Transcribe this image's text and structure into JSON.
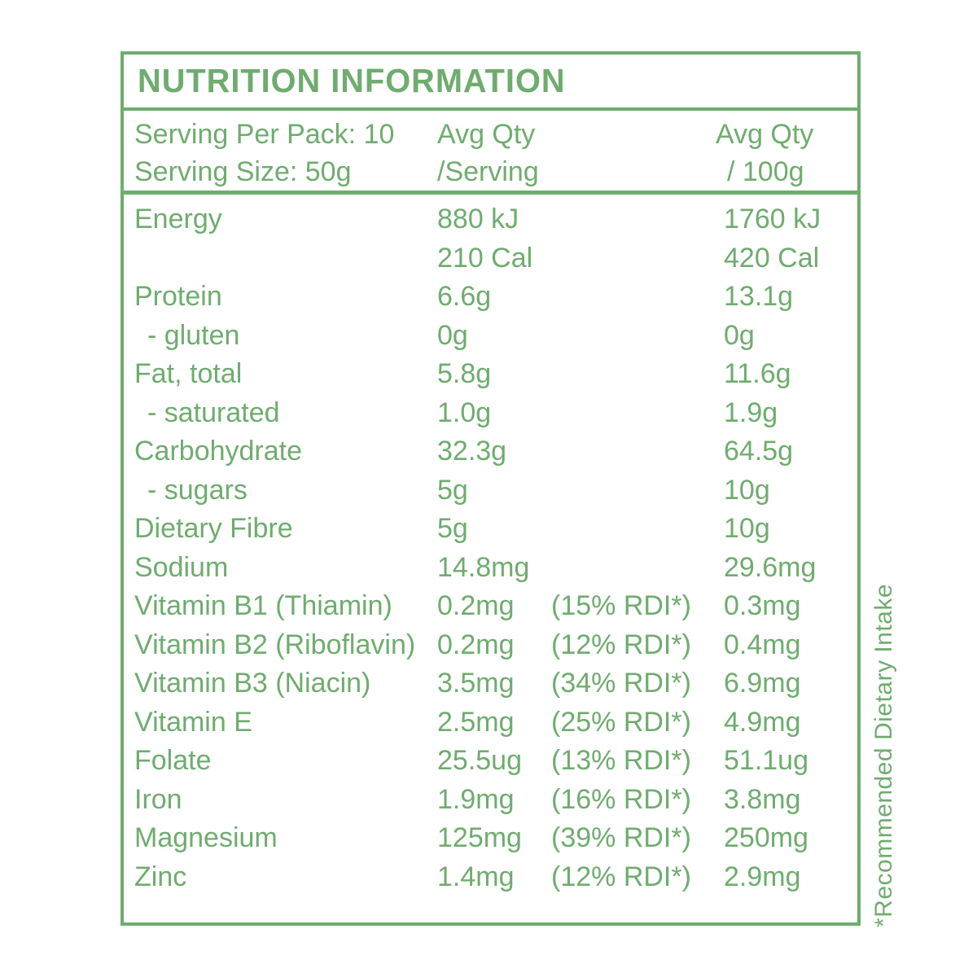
{
  "title": "NUTRITION INFORMATION",
  "colors": {
    "accent_green": "#6fac6f",
    "background": "#ffffff"
  },
  "header": {
    "serving_per_pack": "Serving Per Pack: 10",
    "serving_size": "Serving Size: 50g",
    "col_serving_line1": "Avg Qty",
    "col_serving_line2": "/Serving",
    "col_100g_line1": "Avg Qty",
    "col_100g_line2": "/ 100g"
  },
  "rows": [
    {
      "label": "Energy",
      "per_serving": "880 kJ",
      "rdi": "",
      "per_100g": "1760 kJ",
      "indent": false
    },
    {
      "label": "",
      "per_serving": "210 Cal",
      "rdi": "",
      "per_100g": "420 Cal",
      "indent": false
    },
    {
      "label": "Protein",
      "per_serving": "6.6g",
      "rdi": "",
      "per_100g": "13.1g",
      "indent": false
    },
    {
      "label": "- gluten",
      "per_serving": "0g",
      "rdi": "",
      "per_100g": "0g",
      "indent": true
    },
    {
      "label": "Fat, total",
      "per_serving": "5.8g",
      "rdi": "",
      "per_100g": "11.6g",
      "indent": false
    },
    {
      "label": "- saturated",
      "per_serving": "1.0g",
      "rdi": "",
      "per_100g": "1.9g",
      "indent": true
    },
    {
      "label": "Carbohydrate",
      "per_serving": "32.3g",
      "rdi": "",
      "per_100g": "64.5g",
      "indent": false
    },
    {
      "label": "- sugars",
      "per_serving": "5g",
      "rdi": "",
      "per_100g": "10g",
      "indent": true
    },
    {
      "label": "Dietary Fibre",
      "per_serving": "5g",
      "rdi": "",
      "per_100g": "10g",
      "indent": false
    },
    {
      "label": "Sodium",
      "per_serving": "14.8mg",
      "rdi": "",
      "per_100g": "29.6mg",
      "indent": false
    },
    {
      "label": "Vitamin B1 (Thiamin)",
      "per_serving": "0.2mg",
      "rdi": "(15% RDI*)",
      "per_100g": "0.3mg",
      "indent": false
    },
    {
      "label": "Vitamin B2 (Riboflavin)",
      "per_serving": "0.2mg",
      "rdi": "(12% RDI*)",
      "per_100g": "0.4mg",
      "indent": false
    },
    {
      "label": "Vitamin B3 (Niacin)",
      "per_serving": "3.5mg",
      "rdi": "(34% RDI*)",
      "per_100g": "6.9mg",
      "indent": false
    },
    {
      "label": "Vitamin E",
      "per_serving": "2.5mg",
      "rdi": "(25% RDI*)",
      "per_100g": "4.9mg",
      "indent": false
    },
    {
      "label": "Folate",
      "per_serving": "25.5ug",
      "rdi": "(13% RDI*)",
      "per_100g": "51.1ug",
      "indent": false
    },
    {
      "label": "Iron",
      "per_serving": "1.9mg",
      "rdi": "(16% RDI*)",
      "per_100g": "3.8mg",
      "indent": false
    },
    {
      "label": "Magnesium",
      "per_serving": "125mg",
      "rdi": "(39% RDI*)",
      "per_100g": "250mg",
      "indent": false
    },
    {
      "label": "Zinc",
      "per_serving": "1.4mg",
      "rdi": "(12% RDI*)",
      "per_100g": "2.9mg",
      "indent": false
    }
  ],
  "footnote": "*Recommended Dietary Intake"
}
